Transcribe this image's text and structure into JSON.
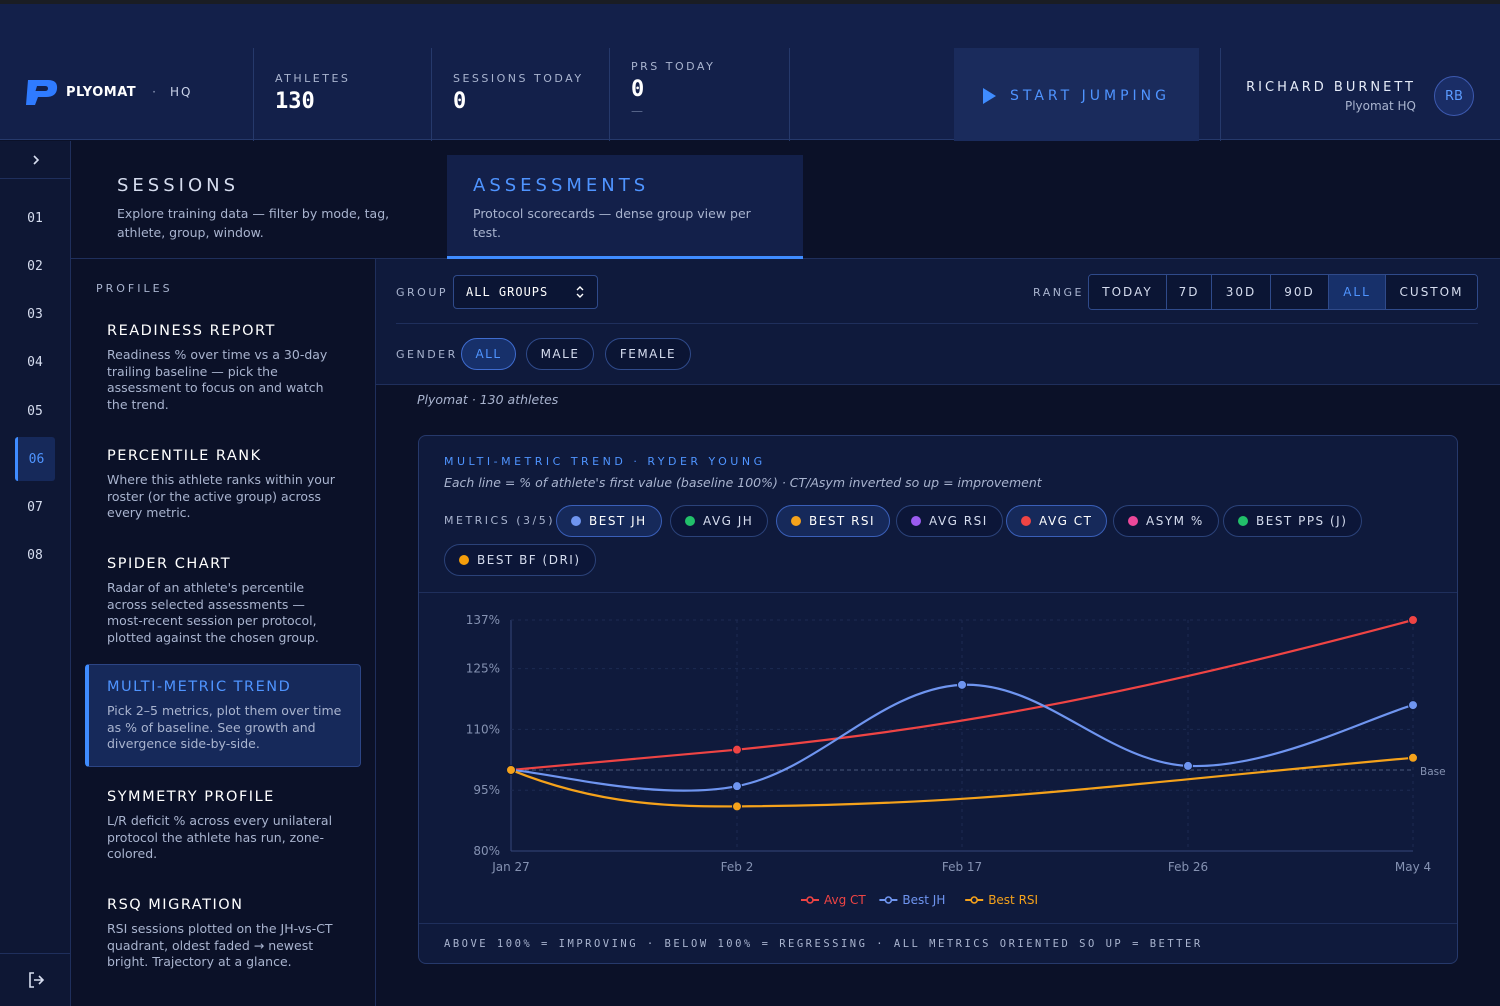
{
  "brand": {
    "name": "PLYOMAT",
    "separator": "·",
    "location": "HQ"
  },
  "stats": [
    {
      "label": "ATHLETES",
      "value": "130",
      "sub": ""
    },
    {
      "label": "SESSIONS TODAY",
      "value": "0",
      "sub": ""
    },
    {
      "label": "PRS TODAY",
      "value": "0",
      "sub": "—"
    }
  ],
  "start_button": "START JUMPING",
  "user": {
    "name": "RICHARD BURNETT",
    "org": "Plyomat HQ",
    "initials": "RB"
  },
  "rail": {
    "items": [
      "01",
      "02",
      "03",
      "04",
      "05",
      "06",
      "07",
      "08"
    ],
    "active_index": 5
  },
  "tabs": [
    {
      "title": "SESSIONS",
      "desc": "Explore training data — filter by mode, tag, athlete, group, window."
    },
    {
      "title": "ASSESSMENTS",
      "desc": "Protocol scorecards — dense group view per test."
    }
  ],
  "profiles": {
    "heading": "PROFILES",
    "items": [
      {
        "title": "READINESS REPORT",
        "desc": "Readiness % over time vs a 30-day trailing baseline — pick the assessment to focus on and watch the trend."
      },
      {
        "title": "PERCENTILE RANK",
        "desc": "Where this athlete ranks within your roster (or the active group) across every metric."
      },
      {
        "title": "SPIDER CHART",
        "desc": "Radar of an athlete's percentile across selected assessments — most-recent session per protocol, plotted against the chosen group."
      },
      {
        "title": "MULTI-METRIC TREND",
        "desc": "Pick 2–5 metrics, plot them over time as % of baseline. See growth and divergence side-by-side."
      },
      {
        "title": "SYMMETRY PROFILE",
        "desc": "L/R deficit % across every unilateral protocol the athlete has run, zone-colored."
      },
      {
        "title": "RSQ MIGRATION",
        "desc": "RSI sessions plotted on the JH-vs-CT quadrant, oldest faded → newest bright. Trajectory at a glance."
      }
    ]
  },
  "filters": {
    "group_label": "GROUP",
    "group_value": "ALL GROUPS",
    "range_label": "RANGE",
    "ranges": [
      "TODAY",
      "7D",
      "30D",
      "90D",
      "ALL",
      "CUSTOM"
    ],
    "range_active": "ALL",
    "gender_label": "GENDER",
    "genders": [
      "ALL",
      "MALE",
      "FEMALE"
    ],
    "gender_active": "ALL"
  },
  "subtitle": "Plyomat · 130 athletes",
  "card": {
    "heading": "MULTI-METRIC TREND · RYDER YOUNG",
    "sub": "Each line = % of athlete's first value (baseline 100%) · CT/Asym inverted so up = improvement",
    "metrics_label": "METRICS (3/5)",
    "metrics": [
      {
        "label": "BEST JH",
        "color": "#6f95f0",
        "on": true
      },
      {
        "label": "AVG JH",
        "color": "#22c06a",
        "on": false
      },
      {
        "label": "BEST RSI",
        "color": "#f5a21b",
        "on": true
      },
      {
        "label": "AVG RSI",
        "color": "#9b5cf0",
        "on": false
      },
      {
        "label": "AVG CT",
        "color": "#ef4444",
        "on": true
      },
      {
        "label": "ASYM %",
        "color": "#ec4899",
        "on": false
      },
      {
        "label": "BEST PPS (J)",
        "color": "#22c06a",
        "on": false
      },
      {
        "label": "BEST BF (DRI)",
        "color": "#f59e0b",
        "on": false
      }
    ],
    "footer": "ABOVE 100% = IMPROVING · BELOW 100% = REGRESSING · ALL METRICS ORIENTED SO UP = BETTER"
  },
  "chart_data": {
    "type": "line",
    "x": [
      "Jan 27",
      "Feb 2",
      "Feb 17",
      "Feb 26",
      "May 4"
    ],
    "y_ticks": [
      "137%",
      "125%",
      "110%",
      "95%",
      "80%"
    ],
    "ylim": [
      80,
      137
    ],
    "baseline": 100,
    "baseline_label": "Base",
    "series": [
      {
        "name": "Avg CT",
        "color": "#ef4444",
        "values": [
          100,
          105,
          null,
          null,
          137
        ]
      },
      {
        "name": "Best JH",
        "color": "#6f95f0",
        "values": [
          100,
          96,
          121,
          101,
          116
        ]
      },
      {
        "name": "Best RSI",
        "color": "#f5a21b",
        "values": [
          100,
          91,
          null,
          null,
          103
        ]
      }
    ]
  }
}
